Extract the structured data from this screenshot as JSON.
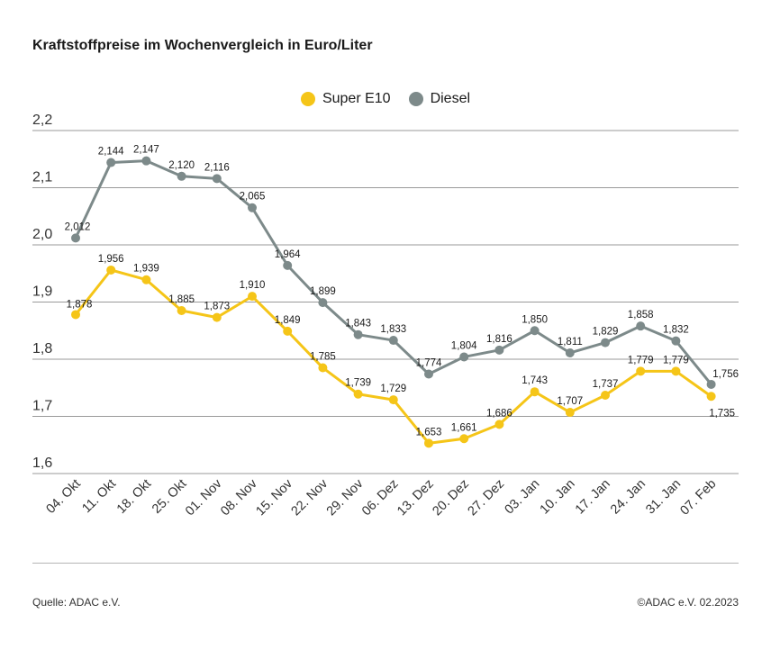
{
  "chart_data": {
    "type": "line",
    "title": "Kraftstoffpreise im Wochenvergleich in Euro/Liter",
    "categories": [
      "04. Okt",
      "11. Okt",
      "18. Okt",
      "25. Okt",
      "01. Nov",
      "08. Nov",
      "15. Nov",
      "22. Nov",
      "29. Nov",
      "06. Dez",
      "13. Dez",
      "20. Dez",
      "27. Dez",
      "03. Jan",
      "10. Jan",
      "17. Jan",
      "24. Jan",
      "31. Jan",
      "07. Feb"
    ],
    "series": [
      {
        "name": "Super E10",
        "color": "#f5c518",
        "values": [
          1.878,
          1.956,
          1.939,
          1.885,
          1.873,
          1.91,
          1.849,
          1.785,
          1.739,
          1.729,
          1.653,
          1.661,
          1.686,
          1.743,
          1.707,
          1.737,
          1.779,
          1.779,
          1.735
        ],
        "labels": [
          "1,878",
          "1,956",
          "1,939",
          "1,885",
          "1,873",
          "1,910",
          "1,849",
          "1,785",
          "1,739",
          "1,729",
          "1,653",
          "1,661",
          "1,686",
          "1,743",
          "1,707",
          "1,737",
          "1,779",
          "1,779",
          "1,735"
        ]
      },
      {
        "name": "Diesel",
        "color": "#7d8a8a",
        "values": [
          2.012,
          2.144,
          2.147,
          2.12,
          2.116,
          2.065,
          1.964,
          1.899,
          1.843,
          1.833,
          1.774,
          1.804,
          1.816,
          1.85,
          1.811,
          1.829,
          1.858,
          1.832,
          1.756
        ],
        "labels": [
          "2,012",
          "2,144",
          "2,147",
          "2,120",
          "2,116",
          "2,065",
          "1,964",
          "1,899",
          "1,843",
          "1,833",
          "1,774",
          "1,804",
          "1,816",
          "1,850",
          "1,811",
          "1,829",
          "1,858",
          "1,832",
          "1,756"
        ]
      }
    ],
    "ylim": [
      1.6,
      2.2
    ],
    "yticks": [
      1.6,
      1.7,
      1.8,
      1.9,
      2.0,
      2.1,
      2.2
    ],
    "ytick_labels": [
      "1,6",
      "1,7",
      "1,8",
      "1,9",
      "2,0",
      "2,1",
      "2,2"
    ],
    "grid": true,
    "legend_position": "top-center"
  },
  "footer": {
    "source": "Quelle: ADAC e.V.",
    "copyright": "©ADAC e.V. 02.2023"
  }
}
